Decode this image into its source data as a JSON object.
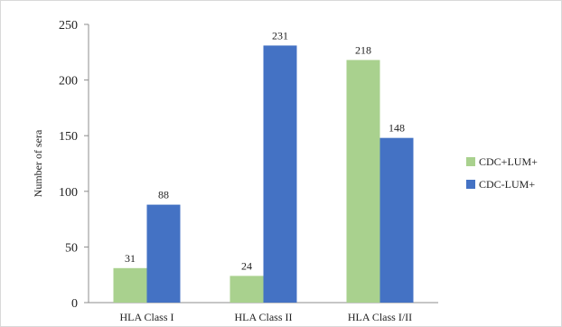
{
  "chart_data": {
    "type": "bar",
    "title": "",
    "xlabel": "",
    "ylabel": "Number of sera",
    "ylim": [
      0,
      250
    ],
    "yticks": [
      0,
      50,
      100,
      150,
      200,
      250
    ],
    "categories": [
      "HLA Class I",
      "HLA Class II",
      "HLA Class I/II"
    ],
    "series": [
      {
        "name": "CDC+LUM+",
        "values": [
          31,
          24,
          218
        ],
        "color": "#a9d18e"
      },
      {
        "name": "CDC-LUM+",
        "values": [
          88,
          231,
          148
        ],
        "color": "#4472c4"
      }
    ],
    "grid": false,
    "legend_position": "right"
  }
}
